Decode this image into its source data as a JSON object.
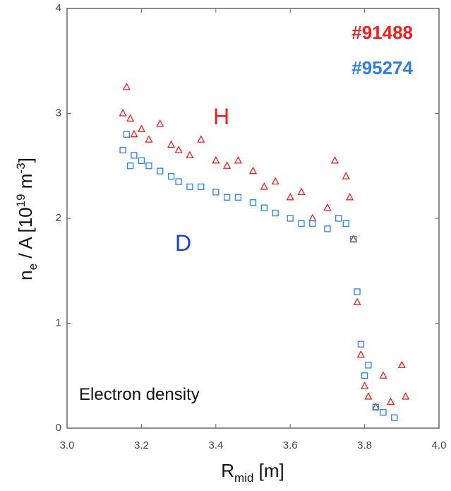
{
  "chart_data": {
    "type": "scatter",
    "xlabel": [
      "R",
      "mid",
      " [m]"
    ],
    "ylabel": [
      "n",
      "e",
      " / A [10",
      "19",
      " m",
      "-3",
      "]"
    ],
    "annotations": [
      "H",
      "D",
      "Electron density"
    ],
    "xlim": [
      3.0,
      4.0
    ],
    "xticks": [
      {
        "value": 3,
        "label": "3.0"
      },
      3.2,
      3.4,
      3.6,
      3.8,
      {
        "value": 4,
        "label": "4.0"
      }
    ],
    "ylim": [
      0,
      4
    ],
    "yticks": [
      0,
      1,
      2,
      3,
      4
    ],
    "series": [
      {
        "name": "#91488",
        "color": "#f02020",
        "marker": "triangle",
        "x": [
          3.15,
          3.16,
          3.17,
          3.18,
          3.2,
          3.22,
          3.25,
          3.28,
          3.3,
          3.33,
          3.36,
          3.4,
          3.43,
          3.46,
          3.5,
          3.53,
          3.56,
          3.6,
          3.63,
          3.66,
          3.7,
          3.72,
          3.75,
          3.76,
          3.77,
          3.78,
          3.79,
          3.8,
          3.81,
          3.83,
          3.85,
          3.87,
          3.9,
          3.91
        ],
        "values": [
          3.0,
          3.25,
          2.95,
          2.8,
          2.85,
          2.75,
          2.9,
          2.7,
          2.65,
          2.6,
          2.75,
          2.55,
          2.5,
          2.55,
          2.45,
          2.3,
          2.35,
          2.2,
          2.25,
          2.0,
          2.1,
          2.55,
          2.4,
          2.2,
          1.8,
          1.2,
          0.7,
          0.4,
          0.3,
          0.2,
          0.5,
          0.25,
          0.6,
          0.3
        ]
      },
      {
        "name": "#95274",
        "color": "#2f7fe0",
        "marker": "square",
        "x": [
          3.15,
          3.16,
          3.17,
          3.18,
          3.2,
          3.22,
          3.25,
          3.28,
          3.3,
          3.33,
          3.36,
          3.4,
          3.43,
          3.46,
          3.5,
          3.53,
          3.56,
          3.6,
          3.63,
          3.66,
          3.7,
          3.73,
          3.75,
          3.77,
          3.78,
          3.79,
          3.8,
          3.81,
          3.83,
          3.85,
          3.88
        ],
        "values": [
          2.65,
          2.8,
          2.5,
          2.6,
          2.55,
          2.5,
          2.45,
          2.4,
          2.35,
          2.3,
          2.3,
          2.25,
          2.2,
          2.2,
          2.15,
          2.1,
          2.05,
          2.0,
          1.95,
          1.95,
          1.9,
          2.0,
          1.95,
          1.8,
          1.3,
          0.8,
          0.5,
          0.6,
          0.2,
          0.15,
          0.1
        ]
      }
    ]
  }
}
